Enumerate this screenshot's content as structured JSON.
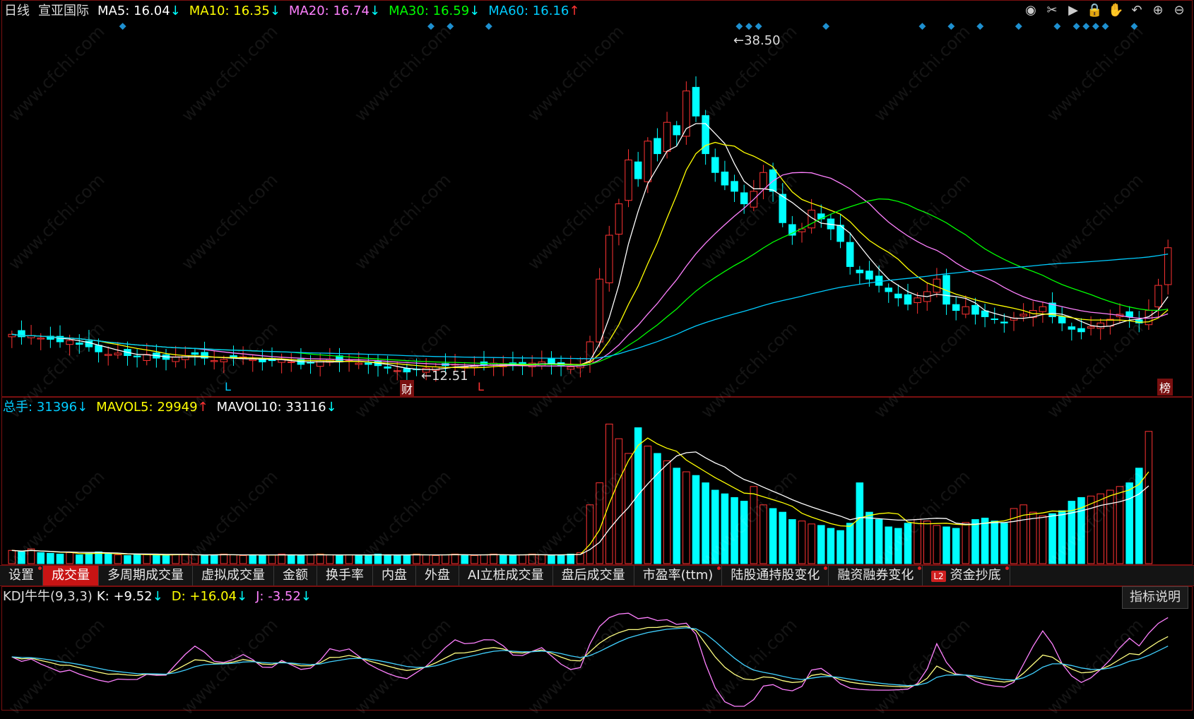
{
  "header": {
    "period": "日线",
    "stock_name": "宣亚国际",
    "ma": [
      {
        "label": "MA5:",
        "value": "16.04",
        "arrow": "↓",
        "color": "#ffffff"
      },
      {
        "label": "MA10:",
        "value": "16.35",
        "arrow": "↓",
        "color": "#ffff00"
      },
      {
        "label": "MA20:",
        "value": "16.74",
        "arrow": "↓",
        "color": "#ff80ff"
      },
      {
        "label": "MA30:",
        "value": "16.59",
        "arrow": "↓",
        "color": "#00ff00"
      },
      {
        "label": "MA60:",
        "value": "16.16",
        "arrow": "↑",
        "color": "#00ccff"
      }
    ]
  },
  "toolbar": {
    "icons": [
      "eye-icon",
      "scissors-icon",
      "play-icon",
      "lock-icon",
      "hand-icon",
      "undo-icon",
      "zoom-in-icon",
      "zoom-out-icon"
    ],
    "glyphs": [
      "◉",
      "✂",
      "▶",
      "🔒",
      "✋",
      "↶",
      "⊕",
      "⊖"
    ]
  },
  "price_panel": {
    "high_label": "38.50",
    "low_label": "12.51",
    "markers": {
      "l1": "L",
      "cai": "财",
      "l2": "L",
      "bang": "榜"
    }
  },
  "volume_panel": {
    "legend": [
      {
        "label": "总手:",
        "value": "31396",
        "arrow": "↓",
        "color": "#00ccff"
      },
      {
        "label": "MAVOL5:",
        "value": "29949",
        "arrow": "↑",
        "color": "#ffff00"
      },
      {
        "label": "MAVOL10:",
        "value": "33116",
        "arrow": "↓",
        "color": "#ffffff"
      }
    ]
  },
  "tabs": [
    {
      "label": "设置",
      "dot": true,
      "active": false
    },
    {
      "label": "成交量",
      "dot": false,
      "active": true
    },
    {
      "label": "多周期成交量",
      "dot": false,
      "active": false
    },
    {
      "label": "虚拟成交量",
      "dot": false,
      "active": false
    },
    {
      "label": "金额",
      "dot": false,
      "active": false
    },
    {
      "label": "换手率",
      "dot": false,
      "active": false
    },
    {
      "label": "内盘",
      "dot": false,
      "active": false
    },
    {
      "label": "外盘",
      "dot": false,
      "active": false
    },
    {
      "label": "AI立桩成交量",
      "dot": false,
      "active": false
    },
    {
      "label": "盘后成交量",
      "dot": false,
      "active": false
    },
    {
      "label": "市盈率(ttm)",
      "dot": true,
      "active": false
    },
    {
      "label": "陆股通持股变化",
      "dot": true,
      "active": false
    },
    {
      "label": "融资融券变化",
      "dot": true,
      "active": false
    },
    {
      "label": "资金抄底",
      "dot": true,
      "active": false,
      "badge": "L2"
    }
  ],
  "kdj_panel": {
    "title": "KDJ牛牛(9,3,3)",
    "values": [
      {
        "label": "K:",
        "value": "+9.52",
        "arrow": "↓",
        "color": "#ffffff"
      },
      {
        "label": "D:",
        "value": "+16.04",
        "arrow": "↓",
        "color": "#ffff00"
      },
      {
        "label": "J:",
        "value": "-3.52",
        "arrow": "↓",
        "color": "#ff80ff"
      }
    ],
    "help_label": "指标说明"
  },
  "watermark": "www.cfchi.com",
  "colors": {
    "up": "#ff3333",
    "down": "#00ffff",
    "frame": "#7a1010",
    "bg": "#000000"
  },
  "chart_data": {
    "type": "candlestick",
    "price_ylim": [
      11,
      40
    ],
    "high": 38.5,
    "low": 12.51,
    "closes": [
      15.6,
      15.4,
      15.5,
      15.3,
      15.2,
      15.0,
      15.1,
      14.8,
      14.6,
      14.2,
      14.0,
      14.1,
      13.9,
      13.8,
      14.0,
      13.7,
      13.6,
      13.8,
      13.9,
      14.0,
      13.7,
      13.5,
      13.6,
      13.7,
      13.8,
      13.6,
      13.4,
      13.5,
      13.6,
      13.4,
      13.2,
      13.3,
      13.5,
      13.6,
      13.4,
      13.5,
      13.3,
      13.2,
      13.1,
      12.9,
      12.7,
      12.6,
      12.8,
      12.9,
      13.0,
      13.1,
      13.2,
      13.0,
      13.1,
      13.2,
      13.3,
      13.2,
      13.1,
      13.2,
      13.3,
      13.4,
      13.2,
      13.1,
      13.0,
      13.1,
      15.0,
      20.0,
      23.5,
      26.0,
      29.5,
      28.0,
      31.0,
      30.0,
      32.5,
      31.5,
      35.0,
      33.0,
      30.0,
      28.5,
      27.5,
      27.0,
      26.0,
      27.0,
      28.5,
      27.0,
      24.5,
      23.5,
      24.0,
      25.5,
      24.8,
      24.0,
      23.0,
      21.0,
      20.5,
      20.0,
      19.5,
      19.0,
      18.5,
      18.0,
      18.5,
      19.0,
      20.0,
      18.0,
      17.5,
      17.8,
      17.2,
      17.0,
      16.8,
      16.5,
      16.9,
      17.2,
      17.5,
      17.8,
      17.0,
      16.5,
      16.0,
      15.8,
      16.2,
      16.5,
      16.8,
      17.2,
      17.0,
      16.5,
      17.5,
      19.5,
      22.5
    ],
    "volumes": [
      18,
      16,
      20,
      15,
      14,
      13,
      15,
      12,
      14,
      16,
      13,
      12,
      11,
      12,
      13,
      12,
      11,
      12,
      13,
      12,
      11,
      12,
      13,
      12,
      11,
      12,
      11,
      12,
      13,
      12,
      11,
      12,
      13,
      12,
      11,
      12,
      11,
      12,
      13,
      12,
      11,
      12,
      13,
      12,
      11,
      12,
      13,
      12,
      11,
      12,
      13,
      12,
      11,
      12,
      13,
      12,
      11,
      12,
      13,
      15,
      80,
      110,
      190,
      170,
      150,
      185,
      160,
      150,
      140,
      130,
      125,
      120,
      110,
      100,
      95,
      90,
      85,
      105,
      80,
      75,
      70,
      60,
      58,
      54,
      52,
      48,
      45,
      55,
      110,
      70,
      60,
      50,
      48,
      55,
      60,
      58,
      52,
      50,
      48,
      56,
      60,
      62,
      58,
      55,
      75,
      80,
      70,
      65,
      68,
      72,
      85,
      90,
      92,
      95,
      100,
      105,
      110,
      130,
      180
    ]
  }
}
